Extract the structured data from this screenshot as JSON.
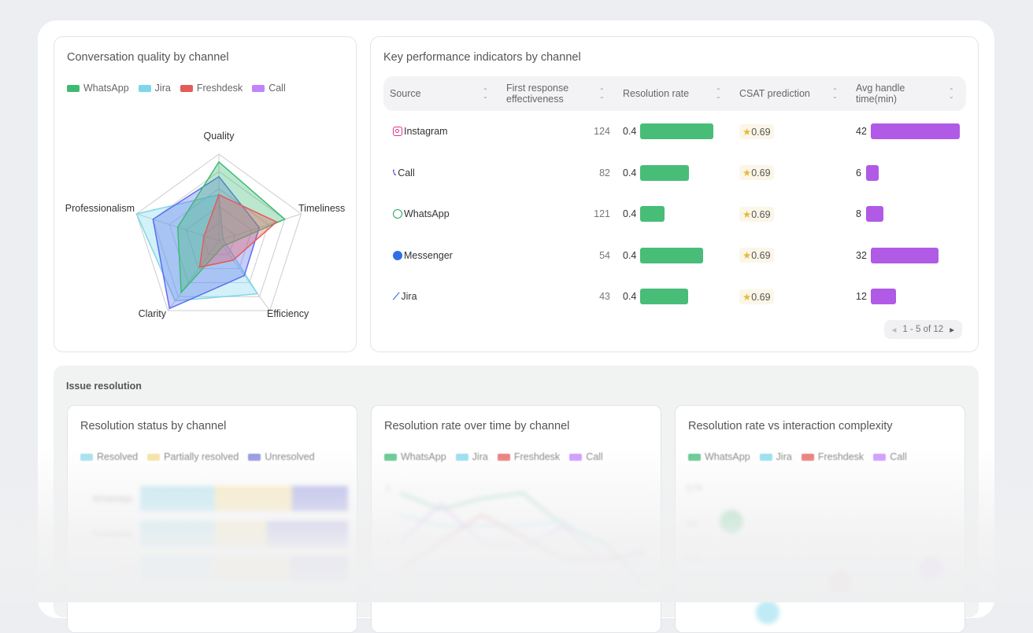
{
  "colors": {
    "whatsapp": "#3dbb74",
    "jira": "#7fd6ea",
    "freshdesk": "#e55a5a",
    "call": "#5b6ff0",
    "call_legend": "#c084fc",
    "resolution_bar": "#47bd78",
    "handle_bar": "#b05ae6",
    "star": "#e6b93a"
  },
  "radar": {
    "title": "Conversation quality by channel",
    "legend": [
      {
        "name": "WhatsApp",
        "color": "#3dbb74"
      },
      {
        "name": "Jira",
        "color": "#7fd6ea"
      },
      {
        "name": "Freshdesk",
        "color": "#e55a5a"
      },
      {
        "name": "Call",
        "color": "#c084fc"
      }
    ],
    "axes": [
      "Quality",
      "Timeliness",
      "Efficiency",
      "Clarity",
      "Professionalism"
    ],
    "series": [
      {
        "name": "Jira",
        "color": "#7fd6ea",
        "values": [
          0.53,
          0.05,
          0.76,
          0.86,
          1.0
        ]
      },
      {
        "name": "Call",
        "color": "#5b6ff0",
        "values": [
          0.74,
          0.49,
          0.5,
          0.97,
          0.8
        ]
      },
      {
        "name": "WhatsApp",
        "color": "#3dbb74",
        "values": [
          0.91,
          0.8,
          0.08,
          0.74,
          0.5
        ]
      },
      {
        "name": "Freshdesk",
        "color": "#e55a5a",
        "values": [
          0.53,
          0.7,
          0.28,
          0.38,
          0.18
        ]
      }
    ]
  },
  "kpi": {
    "title": "Key performance indicators by channel",
    "columns": [
      "Source",
      "First response effectiveness",
      "Resolution rate",
      "CSAT prediction",
      "Avg handle time(min)"
    ],
    "rows": [
      {
        "source": "Instagram",
        "icon": "instagram-icon",
        "first_response": "124",
        "resolution": "0.4",
        "resolution_fill": 1.0,
        "csat": "0.69",
        "handle": "42",
        "handle_value": 42
      },
      {
        "source": "Call",
        "icon": "phone-icon",
        "first_response": "82",
        "resolution": "0.4",
        "resolution_fill": 0.67,
        "csat": "0.69",
        "handle": "6",
        "handle_value": 6
      },
      {
        "source": "WhatsApp",
        "icon": "whatsapp-icon",
        "first_response": "121",
        "resolution": "0.4",
        "resolution_fill": 0.33,
        "csat": "0.69",
        "handle": "8",
        "handle_value": 8
      },
      {
        "source": "Messenger",
        "icon": "messenger-icon",
        "first_response": "54",
        "resolution": "0.4",
        "resolution_fill": 0.86,
        "csat": "0.69",
        "handle": "32",
        "handle_value": 32
      },
      {
        "source": "Jira",
        "icon": "jira-icon",
        "first_response": "43",
        "resolution": "0.4",
        "resolution_fill": 0.66,
        "csat": "0.69",
        "handle": "12",
        "handle_value": 12
      }
    ],
    "pager": "1 - 5 of 12"
  },
  "issue": {
    "title": "Issue resolution",
    "status": {
      "title": "Resolution status by channel",
      "legend": [
        {
          "name": "Resolved",
          "color": "#8fd8ea"
        },
        {
          "name": "Partially resolved",
          "color": "#f6dc8e"
        },
        {
          "name": "Unresolved",
          "color": "#7b7cdb"
        }
      ],
      "categories": [
        "WhatsApp",
        "Freshdesk",
        "Call"
      ],
      "stacks": [
        [
          36,
          37,
          27
        ],
        [
          36,
          25,
          39
        ],
        [
          34,
          38,
          28
        ]
      ]
    },
    "overtime": {
      "title": "Resolution rate over time by channel",
      "legend": [
        {
          "name": "WhatsApp",
          "color": "#3dbb74"
        },
        {
          "name": "Jira",
          "color": "#7fd6ea"
        },
        {
          "name": "Freshdesk",
          "color": "#e55a5a"
        },
        {
          "name": "Call",
          "color": "#c084fc"
        }
      ],
      "yticks": [
        "2",
        "1"
      ],
      "series": [
        [
          1.9,
          1.6,
          1.8,
          1.9,
          1.3,
          1.0,
          0.2
        ],
        [
          1.5,
          1.3,
          1.3,
          1.3,
          1.4,
          0.8,
          0.6
        ],
        [
          0.5,
          1.0,
          1.5,
          1.1,
          0.7,
          0.7,
          0.8
        ],
        [
          1.0,
          1.7,
          1.0,
          0.9,
          1.3,
          0.6,
          0.9
        ]
      ]
    },
    "complexity": {
      "title": "Resolution rate vs interaction complexity",
      "legend": [
        {
          "name": "WhatsApp",
          "color": "#3dbb74"
        },
        {
          "name": "Jira",
          "color": "#7fd6ea"
        },
        {
          "name": "Freshdesk",
          "color": "#e55a5a"
        },
        {
          "name": "Call",
          "color": "#c084fc"
        }
      ],
      "yticks": [
        "0.75",
        "0.5",
        "0.25"
      ],
      "points": [
        {
          "x": 0.5,
          "y": 0.68
        },
        {
          "x": 1.5,
          "y": 0.18
        },
        {
          "x": 3.5,
          "y": 0.34
        },
        {
          "x": 6,
          "y": 0.42
        }
      ]
    }
  }
}
